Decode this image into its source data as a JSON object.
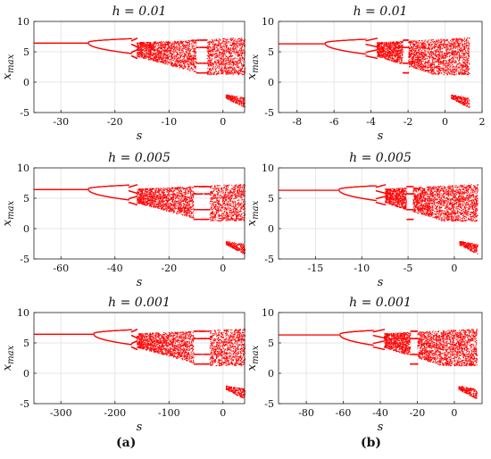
{
  "chart_data": [
    {
      "id": "a1",
      "type": "scatter",
      "title": "h = 0.01",
      "xlabel": "s",
      "ylabel": "x_max",
      "xlim": [
        -35,
        4
      ],
      "ylim": [
        -5,
        10
      ],
      "xticks": [
        -30,
        -20,
        -10,
        0
      ],
      "yticks": [
        -5,
        0,
        5,
        10
      ],
      "grid": true,
      "branches": {
        "fixed_point": 6.5,
        "pd1": -25,
        "pd2": -17,
        "chaos": -16,
        "window": [
          -5,
          -3
        ],
        "end": 4
      }
    },
    {
      "id": "b1",
      "type": "scatter",
      "title": "h = 0.01",
      "xlabel": "s",
      "ylabel": "x_max",
      "xlim": [
        -9,
        2
      ],
      "ylim": [
        -5,
        10
      ],
      "xticks": [
        -8,
        -6,
        -4,
        -2,
        0,
        2
      ],
      "yticks": [
        -5,
        0,
        5,
        10
      ],
      "grid": true,
      "branches": {
        "fixed_point": 6.4,
        "pd1": -6.5,
        "pd2": -4.3,
        "chaos": -3.7,
        "window": [
          -2.3,
          -2.0
        ],
        "end": 1.3
      }
    },
    {
      "id": "a2",
      "type": "scatter",
      "title": "h = 0.005",
      "xlabel": "s",
      "ylabel": "x_max",
      "xlim": [
        -70,
        8
      ],
      "ylim": [
        -5,
        10
      ],
      "xticks": [
        -60,
        -40,
        -20,
        0
      ],
      "yticks": [
        -5,
        0,
        5,
        10
      ],
      "grid": true,
      "branches": {
        "fixed_point": 6.5,
        "pd1": -50,
        "pd2": -35,
        "chaos": -32,
        "window": [
          -11,
          -5
        ],
        "end": 8
      }
    },
    {
      "id": "b2",
      "type": "scatter",
      "title": "h = 0.005",
      "xlabel": "s",
      "ylabel": "x_max",
      "xlim": [
        -19,
        3
      ],
      "ylim": [
        -5,
        10
      ],
      "xticks": [
        -15,
        -10,
        -5,
        0
      ],
      "yticks": [
        -5,
        0,
        5,
        10
      ],
      "grid": true,
      "branches": {
        "fixed_point": 6.4,
        "pd1": -12.5,
        "pd2": -8.5,
        "chaos": -7.5,
        "window": [
          -5.2,
          -4.5
        ],
        "end": 2.5
      }
    },
    {
      "id": "a3",
      "type": "scatter",
      "title": "h = 0.001",
      "xlabel": "s",
      "ylabel": "x_max",
      "xlim": [
        -350,
        40
      ],
      "ylim": [
        -5,
        10
      ],
      "xticks": [
        -300,
        -200,
        -100,
        0
      ],
      "yticks": [
        -5,
        0,
        5,
        10
      ],
      "grid": true,
      "branches": {
        "fixed_point": 6.5,
        "pd1": -240,
        "pd2": -170,
        "chaos": -160,
        "window": [
          -55,
          -25
        ],
        "end": 40
      }
    },
    {
      "id": "b3",
      "type": "scatter",
      "title": "h = 0.001",
      "xlabel": "s",
      "ylabel": "x_max",
      "xlim": [
        -95,
        15
      ],
      "ylim": [
        -5,
        10
      ],
      "xticks": [
        -80,
        -60,
        -40,
        -20,
        0
      ],
      "yticks": [
        -5,
        0,
        5,
        10
      ],
      "grid": true,
      "branches": {
        "fixed_point": 6.4,
        "pd1": -62,
        "pd2": -44,
        "chaos": -38,
        "window": [
          -24,
          -20
        ],
        "end": 12
      }
    }
  ],
  "captions": {
    "left": "(a)",
    "right": "(b)"
  },
  "colors": {
    "points": "#ff0000",
    "grid": "#e6e6e6",
    "axis": "#222222"
  }
}
